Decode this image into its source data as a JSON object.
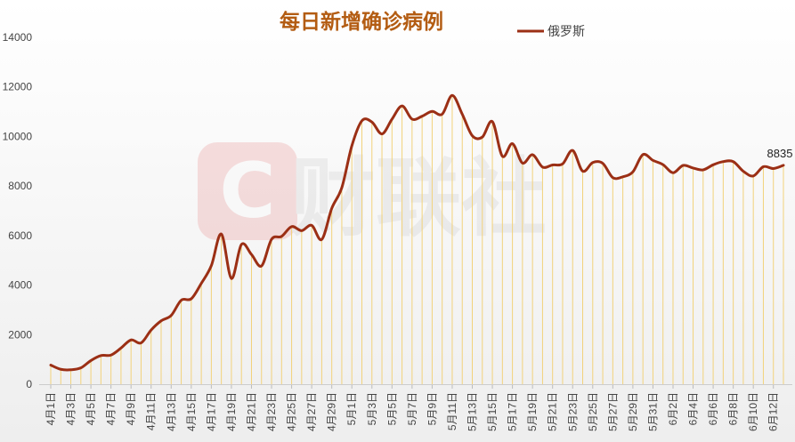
{
  "chart_data": {
    "type": "line",
    "title": "每日新增确诊病例",
    "xlabel": "",
    "ylabel": "",
    "ylim": [
      0,
      14000
    ],
    "yticks": [
      0,
      2000,
      4000,
      6000,
      8000,
      10000,
      12000,
      14000
    ],
    "grid": false,
    "legend_position": "top-right",
    "color": "#9b2f15",
    "watermark": "财联社",
    "x": [
      "4月1日",
      "4月2日",
      "4月3日",
      "4月4日",
      "4月5日",
      "4月6日",
      "4月7日",
      "4月8日",
      "4月9日",
      "4月10日",
      "4月11日",
      "4月12日",
      "4月13日",
      "4月14日",
      "4月15日",
      "4月16日",
      "4月17日",
      "4月18日",
      "4月19日",
      "4月20日",
      "4月21日",
      "4月22日",
      "4月23日",
      "4月24日",
      "4月25日",
      "4月26日",
      "4月27日",
      "4月28日",
      "4月29日",
      "4月30日",
      "5月1日",
      "5月2日",
      "5月3日",
      "5月4日",
      "5月5日",
      "5月6日",
      "5月7日",
      "5月8日",
      "5月9日",
      "5月10日",
      "5月11日",
      "5月12日",
      "5月13日",
      "5月14日",
      "5月15日",
      "5月16日",
      "5月17日",
      "5月18日",
      "5月19日",
      "5月20日",
      "5月21日",
      "5月22日",
      "5月23日",
      "5月24日",
      "5月25日",
      "5月26日",
      "5月27日",
      "5月28日",
      "5月29日",
      "5月30日",
      "5月31日",
      "6月1日",
      "6月2日",
      "6月3日",
      "6月4日",
      "6月5日",
      "6月6日",
      "6月7日",
      "6月8日",
      "6月9日",
      "6月10日",
      "6月11日",
      "6月12日",
      "6月13日"
    ],
    "xtick_labels": [
      "4月1日",
      "4月3日",
      "4月5日",
      "4月7日",
      "4月9日",
      "4月11日",
      "4月13日",
      "4月15日",
      "4月17日",
      "4月19日",
      "4月21日",
      "4月23日",
      "4月25日",
      "4月27日",
      "4月29日",
      "5月1日",
      "5月3日",
      "5月5日",
      "5月7日",
      "5月9日",
      "5月11日",
      "5月13日",
      "5月15日",
      "5月17日",
      "5月19日",
      "5月21日",
      "5月23日",
      "5月25日",
      "5月27日",
      "5月29日",
      "5月31日",
      "6月2日",
      "6月4日",
      "6月6日",
      "6月8日",
      "6月10日",
      "6月12日"
    ],
    "series": [
      {
        "name": "俄罗斯",
        "values": [
          771,
          601,
          582,
          658,
          954,
          1154,
          1175,
          1459,
          1786,
          1667,
          2186,
          2558,
          2774,
          3388,
          3448,
          4070,
          4785,
          6060,
          4268,
          5642,
          5236,
          4774,
          5849,
          5966,
          6361,
          6198,
          6411,
          5841,
          7099,
          7933,
          9623,
          10633,
          10581,
          10102,
          10699,
          11231,
          10699,
          10817,
          11012,
          10899,
          11656,
          10899,
          10028,
          9974,
          10598,
          9200,
          9709,
          8926,
          9263,
          8764,
          8849,
          8894,
          9434,
          8599,
          8946,
          8915,
          8338,
          8371,
          8572,
          9268,
          9035,
          8863,
          8536,
          8831,
          8726,
          8652,
          8855,
          8985,
          8984,
          8595,
          8404,
          8779,
          8706,
          8835
        ]
      }
    ],
    "annotations": [
      {
        "x": "6月13日",
        "text": "8835"
      }
    ]
  }
}
